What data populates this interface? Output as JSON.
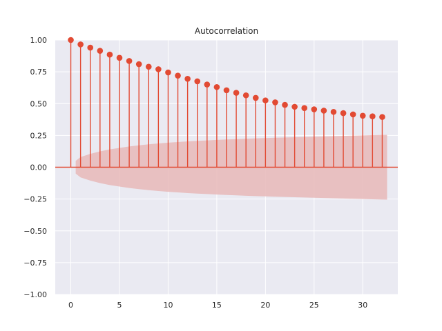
{
  "chart_data": {
    "type": "stem",
    "title": "Autocorrelation",
    "xlabel": "",
    "ylabel": "",
    "xlim": [
      -1.6,
      33.6
    ],
    "ylim": [
      -1.0,
      1.0
    ],
    "x_ticks": [
      0,
      5,
      10,
      15,
      20,
      25,
      30
    ],
    "x_tick_labels": [
      "0",
      "5",
      "10",
      "15",
      "20",
      "25",
      "30"
    ],
    "y_ticks": [
      -1.0,
      -0.75,
      -0.5,
      -0.25,
      0.0,
      0.25,
      0.5,
      0.75,
      1.0
    ],
    "y_tick_labels": [
      "−1.00",
      "−0.75",
      "−0.50",
      "−0.25",
      "0.00",
      "0.25",
      "0.50",
      "0.75",
      "1.00"
    ],
    "grid": true,
    "lags": [
      0,
      1,
      2,
      3,
      4,
      5,
      6,
      7,
      8,
      9,
      10,
      11,
      12,
      13,
      14,
      15,
      16,
      17,
      18,
      19,
      20,
      21,
      22,
      23,
      24,
      25,
      26,
      27,
      28,
      29,
      30,
      31,
      32
    ],
    "values": [
      1.0,
      0.965,
      0.94,
      0.915,
      0.885,
      0.86,
      0.835,
      0.81,
      0.79,
      0.77,
      0.745,
      0.72,
      0.695,
      0.675,
      0.65,
      0.63,
      0.605,
      0.585,
      0.565,
      0.545,
      0.525,
      0.51,
      0.49,
      0.475,
      0.465,
      0.455,
      0.445,
      0.435,
      0.425,
      0.415,
      0.405,
      0.4,
      0.395
    ],
    "confidence_band": {
      "x": [
        0.5,
        1,
        2,
        3,
        4,
        5,
        6,
        7,
        8,
        9,
        10,
        11,
        12,
        13,
        14,
        15,
        16,
        17,
        18,
        19,
        20,
        21,
        22,
        23,
        24,
        25,
        26,
        27,
        28,
        29,
        30,
        31,
        32,
        32.5
      ],
      "upper": [
        0.05,
        0.08,
        0.105,
        0.125,
        0.14,
        0.152,
        0.163,
        0.172,
        0.18,
        0.187,
        0.193,
        0.198,
        0.203,
        0.207,
        0.211,
        0.215,
        0.218,
        0.221,
        0.224,
        0.227,
        0.229,
        0.232,
        0.234,
        0.236,
        0.238,
        0.24,
        0.242,
        0.244,
        0.246,
        0.248,
        0.25,
        0.252,
        0.254,
        0.255
      ]
    },
    "colors": {
      "stem": "#e24a33",
      "marker": "#e24a33",
      "band": "#e8b9b9",
      "zero_line": "#e24a33",
      "axes_bg": "#eaeaf2",
      "grid": "#ffffff"
    }
  }
}
